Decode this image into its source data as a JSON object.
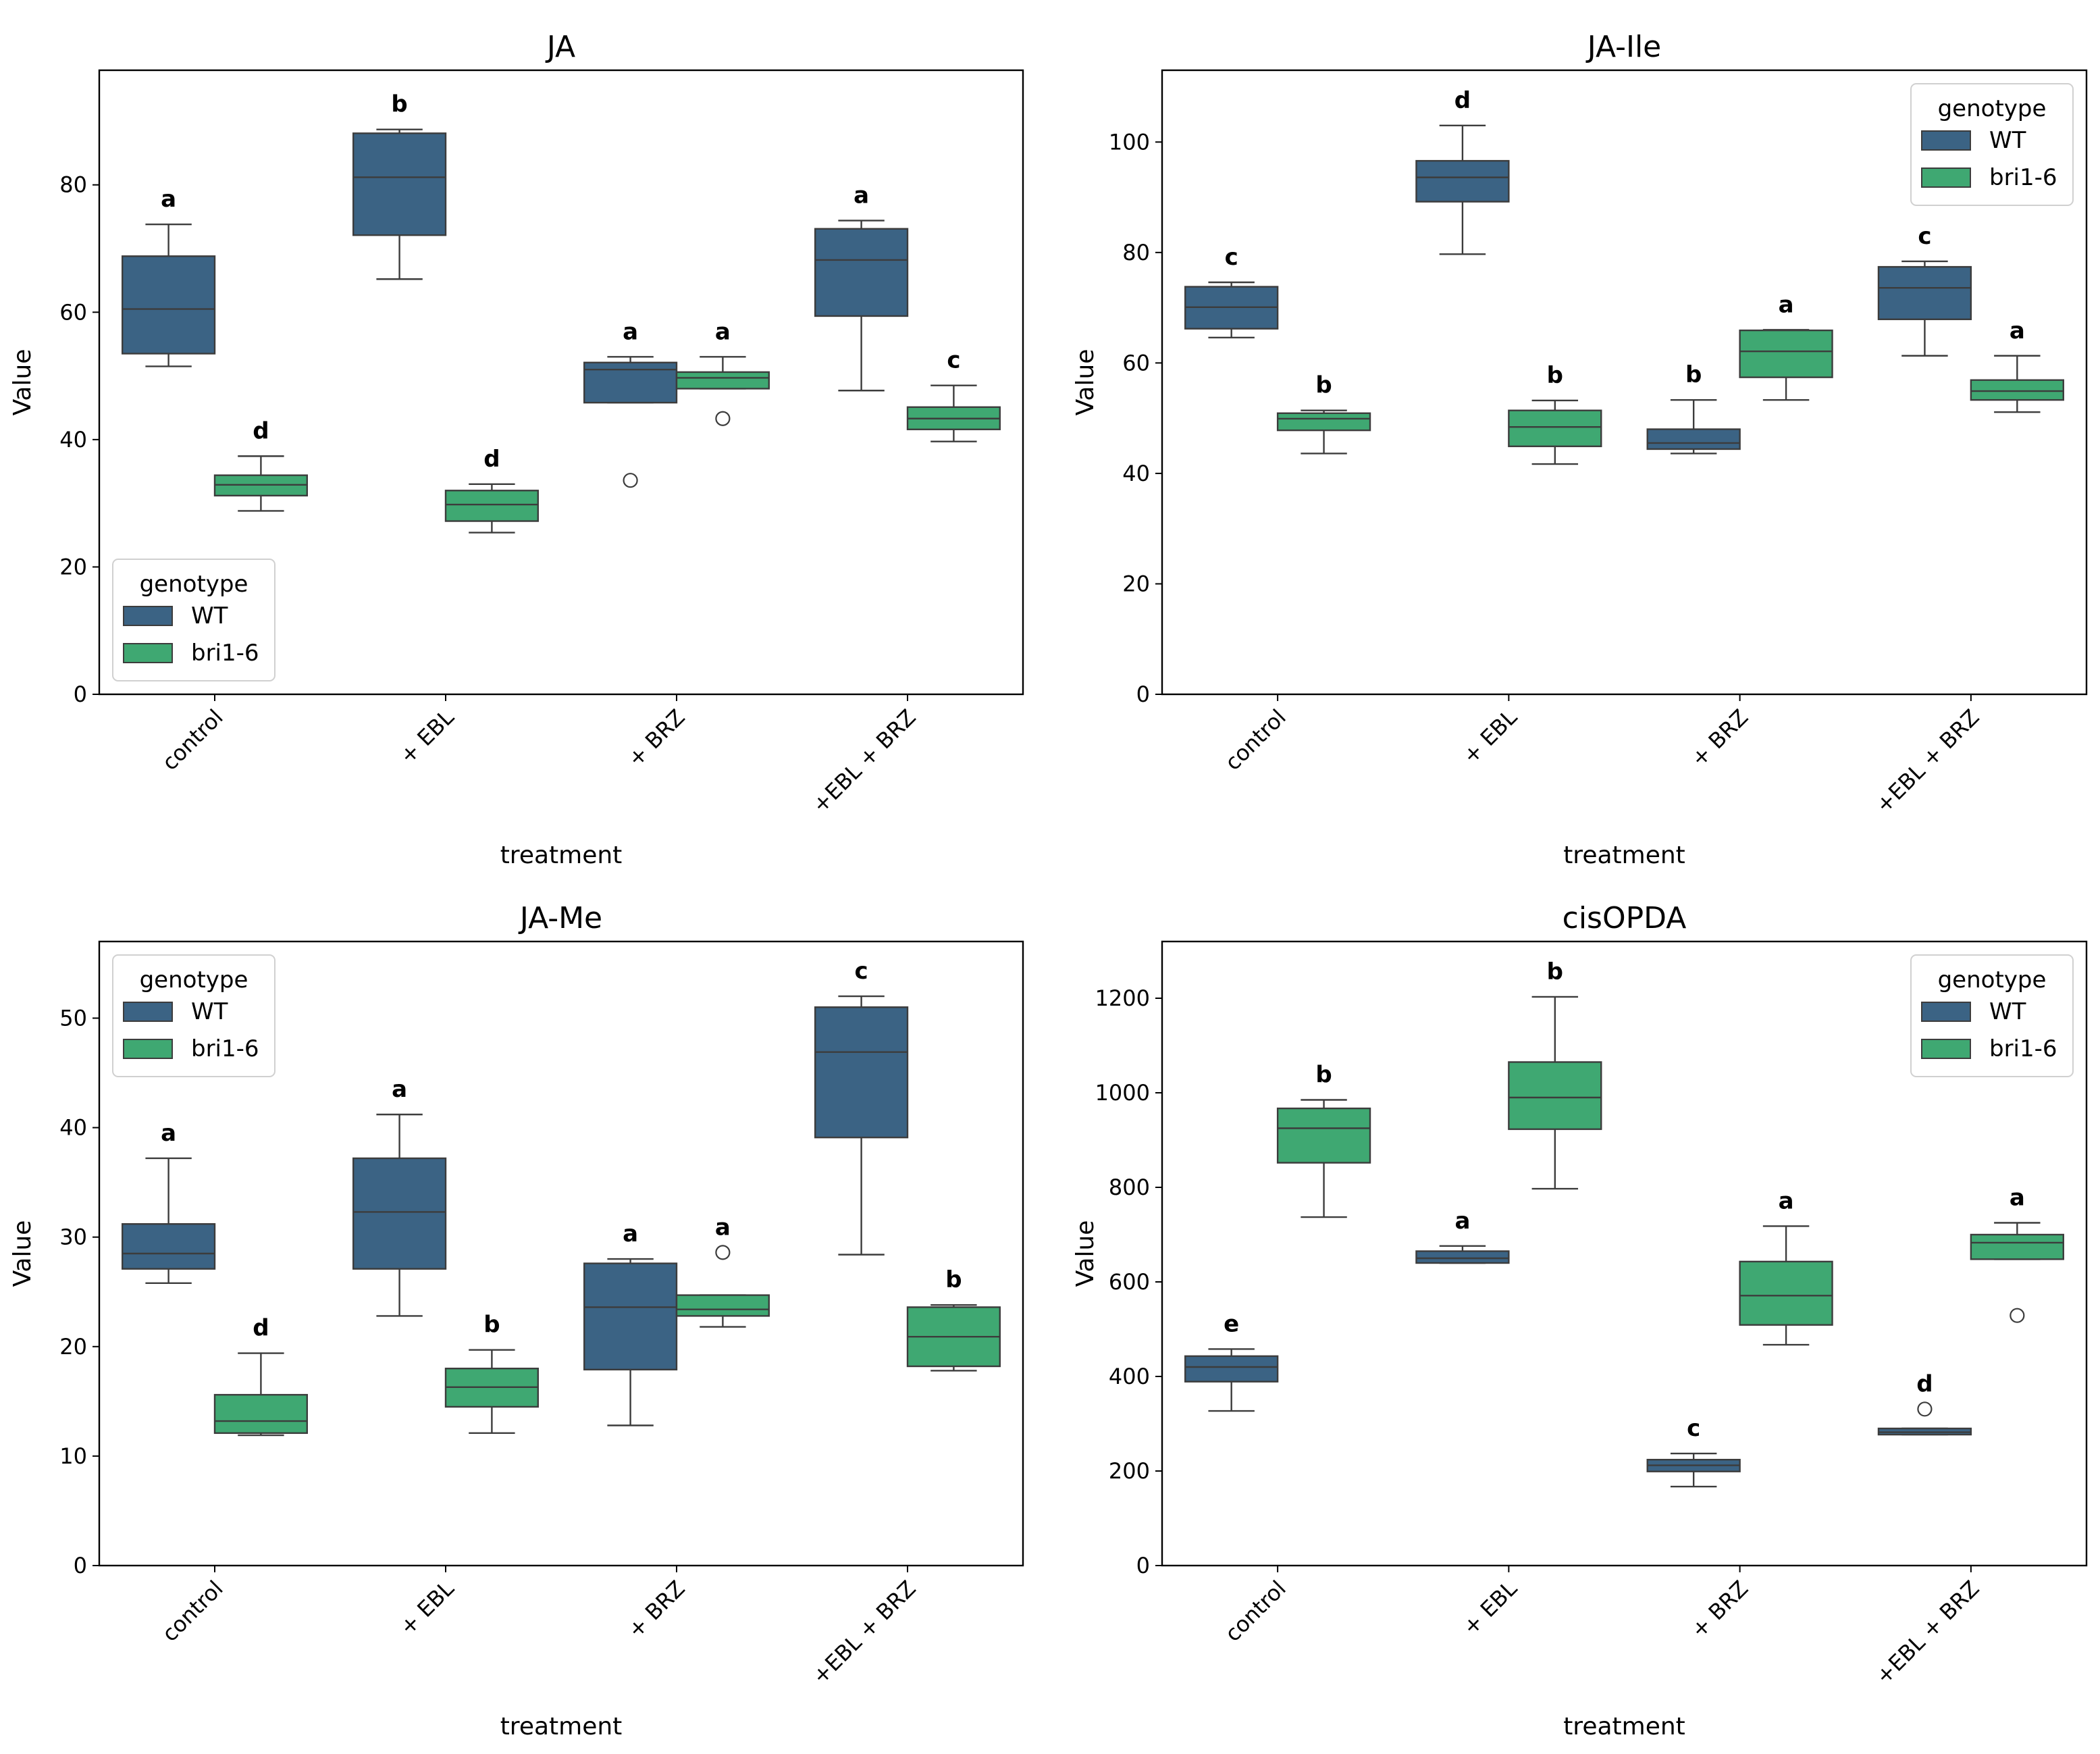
{
  "chart_data": [
    {
      "type": "box",
      "title": "JA",
      "xlabel": "treatment",
      "ylabel": "Value",
      "ylim": [
        0,
        98
      ],
      "yticks": [
        0,
        20,
        40,
        60,
        80
      ],
      "categories": [
        "control",
        "+ EBL",
        "+ BRZ",
        "+EBL + BRZ"
      ],
      "legend": {
        "title": "genotype",
        "position": "lower-left",
        "entries": [
          {
            "name": "WT",
            "color": "#3b6384"
          },
          {
            "name": "bri1-6",
            "color": "#3fa872"
          }
        ]
      },
      "series": [
        {
          "name": "WT",
          "color": "#3b6384",
          "boxes": [
            {
              "whislo": 51.5,
              "q1": 53.5,
              "med": 60.5,
              "q3": 68.8,
              "whishi": 73.8,
              "fliers": [],
              "letter": "a"
            },
            {
              "whislo": 65.2,
              "q1": 72.1,
              "med": 81.2,
              "q3": 88.1,
              "whishi": 88.7,
              "fliers": [],
              "letter": "b"
            },
            {
              "whislo": 45.8,
              "q1": 45.8,
              "med": 51.0,
              "q3": 52.1,
              "whishi": 53.0,
              "fliers": [
                33.6
              ],
              "letter": "a"
            },
            {
              "whislo": 47.7,
              "q1": 59.4,
              "med": 68.2,
              "q3": 73.1,
              "whishi": 74.4,
              "fliers": [],
              "letter": "a"
            }
          ]
        },
        {
          "name": "bri1-6",
          "color": "#3fa872",
          "boxes": [
            {
              "whislo": 28.8,
              "q1": 31.2,
              "med": 32.9,
              "q3": 34.4,
              "whishi": 37.4,
              "fliers": [],
              "letter": "d"
            },
            {
              "whislo": 25.4,
              "q1": 27.2,
              "med": 29.8,
              "q3": 32.0,
              "whishi": 33.0,
              "fliers": [],
              "letter": "d"
            },
            {
              "whislo": 48.0,
              "q1": 48.0,
              "med": 49.7,
              "q3": 50.6,
              "whishi": 53.0,
              "fliers": [
                43.3
              ],
              "letter": "a"
            },
            {
              "whislo": 39.7,
              "q1": 41.6,
              "med": 43.3,
              "q3": 45.1,
              "whishi": 48.5,
              "fliers": [],
              "letter": "c"
            }
          ]
        }
      ]
    },
    {
      "type": "box",
      "title": "JA-Ile",
      "xlabel": "treatment",
      "ylabel": "Value",
      "ylim": [
        0,
        113
      ],
      "yticks": [
        0,
        20,
        40,
        60,
        80,
        100
      ],
      "categories": [
        "control",
        "+ EBL",
        "+ BRZ",
        "+EBL + BRZ"
      ],
      "legend": {
        "title": "genotype",
        "position": "upper-right",
        "entries": [
          {
            "name": "WT",
            "color": "#3b6384"
          },
          {
            "name": "bri1-6",
            "color": "#3fa872"
          }
        ]
      },
      "series": [
        {
          "name": "WT",
          "color": "#3b6384",
          "boxes": [
            {
              "whislo": 64.6,
              "q1": 66.2,
              "med": 70.1,
              "q3": 73.8,
              "whishi": 74.6,
              "fliers": [],
              "letter": "c"
            },
            {
              "whislo": 79.7,
              "q1": 89.2,
              "med": 93.6,
              "q3": 96.6,
              "whishi": 103.0,
              "fliers": [],
              "letter": "d"
            },
            {
              "whislo": 43.6,
              "q1": 44.4,
              "med": 45.5,
              "q3": 48.0,
              "whishi": 53.3,
              "fliers": [],
              "letter": "b"
            },
            {
              "whislo": 61.3,
              "q1": 67.9,
              "med": 73.6,
              "q3": 77.4,
              "whishi": 78.4,
              "fliers": [],
              "letter": "c"
            }
          ]
        },
        {
          "name": "bri1-6",
          "color": "#3fa872",
          "boxes": [
            {
              "whislo": 43.6,
              "q1": 47.8,
              "med": 49.9,
              "q3": 50.9,
              "whishi": 51.4,
              "fliers": [],
              "letter": "b"
            },
            {
              "whislo": 41.7,
              "q1": 44.9,
              "med": 48.4,
              "q3": 51.4,
              "whishi": 53.2,
              "fliers": [],
              "letter": "b"
            },
            {
              "whislo": 53.3,
              "q1": 57.4,
              "med": 62.1,
              "q3": 65.9,
              "whishi": 66.0,
              "fliers": [],
              "letter": "a"
            },
            {
              "whislo": 51.1,
              "q1": 53.3,
              "med": 54.9,
              "q3": 56.9,
              "whishi": 61.3,
              "fliers": [],
              "letter": "a"
            }
          ]
        }
      ]
    },
    {
      "type": "box",
      "title": "JA-Me",
      "xlabel": "treatment",
      "ylabel": "Value",
      "ylim": [
        0,
        57
      ],
      "yticks": [
        0,
        10,
        20,
        30,
        40,
        50
      ],
      "categories": [
        "control",
        "+ EBL",
        "+ BRZ",
        "+EBL + BRZ"
      ],
      "legend": {
        "title": "genotype",
        "position": "upper-left",
        "entries": [
          {
            "name": "WT",
            "color": "#3b6384"
          },
          {
            "name": "bri1-6",
            "color": "#3fa872"
          }
        ]
      },
      "series": [
        {
          "name": "WT",
          "color": "#3b6384",
          "boxes": [
            {
              "whislo": 25.8,
              "q1": 27.1,
              "med": 28.5,
              "q3": 31.2,
              "whishi": 37.2,
              "fliers": [],
              "letter": "a"
            },
            {
              "whislo": 22.8,
              "q1": 27.1,
              "med": 32.3,
              "q3": 37.2,
              "whishi": 41.2,
              "fliers": [],
              "letter": "a"
            },
            {
              "whislo": 12.8,
              "q1": 17.9,
              "med": 23.6,
              "q3": 27.6,
              "whishi": 28.0,
              "fliers": [],
              "letter": "a"
            },
            {
              "whislo": 28.4,
              "q1": 39.1,
              "med": 46.9,
              "q3": 51.0,
              "whishi": 52.0,
              "fliers": [],
              "letter": "c"
            }
          ]
        },
        {
          "name": "bri1-6",
          "color": "#3fa872",
          "boxes": [
            {
              "whislo": 11.9,
              "q1": 12.1,
              "med": 13.2,
              "q3": 15.6,
              "whishi": 19.4,
              "fliers": [],
              "letter": "d"
            },
            {
              "whislo": 12.1,
              "q1": 14.5,
              "med": 16.3,
              "q3": 18.0,
              "whishi": 19.7,
              "fliers": [],
              "letter": "b"
            },
            {
              "whislo": 21.8,
              "q1": 22.8,
              "med": 23.4,
              "q3": 24.7,
              "whishi": 24.7,
              "fliers": [
                28.6
              ],
              "letter": "a"
            },
            {
              "whislo": 17.8,
              "q1": 18.2,
              "med": 20.9,
              "q3": 23.6,
              "whishi": 23.8,
              "fliers": [],
              "letter": "b"
            }
          ]
        }
      ]
    },
    {
      "type": "box",
      "title": "cisOPDA",
      "xlabel": "treatment",
      "ylabel": "Value",
      "ylim": [
        0,
        1320
      ],
      "yticks": [
        0,
        200,
        400,
        600,
        800,
        1000,
        1200
      ],
      "categories": [
        "control",
        "+ EBL",
        "+ BRZ",
        "+EBL + BRZ"
      ],
      "legend": {
        "title": "genotype",
        "position": "upper-right",
        "entries": [
          {
            "name": "WT",
            "color": "#3b6384"
          },
          {
            "name": "bri1-6",
            "color": "#3fa872"
          }
        ]
      },
      "series": [
        {
          "name": "WT",
          "color": "#3b6384",
          "boxes": [
            {
              "whislo": 327,
              "q1": 389,
              "med": 420,
              "q3": 443,
              "whishi": 458,
              "fliers": [],
              "letter": "e"
            },
            {
              "whislo": 640,
              "q1": 640,
              "med": 650,
              "q3": 665,
              "whishi": 676,
              "fliers": [],
              "letter": "a"
            },
            {
              "whislo": 167,
              "q1": 199,
              "med": 212,
              "q3": 224,
              "whishi": 237,
              "fliers": [],
              "letter": "c"
            },
            {
              "whislo": 277,
              "q1": 277,
              "med": 282,
              "q3": 290,
              "whishi": 290,
              "fliers": [
                331
              ],
              "letter": "d"
            }
          ]
        },
        {
          "name": "bri1-6",
          "color": "#3fa872",
          "boxes": [
            {
              "whislo": 737,
              "q1": 852,
              "med": 925,
              "q3": 967,
              "whishi": 985,
              "fliers": [],
              "letter": "b"
            },
            {
              "whislo": 797,
              "q1": 923,
              "med": 990,
              "q3": 1065,
              "whishi": 1203,
              "fliers": [],
              "letter": "b"
            },
            {
              "whislo": 467,
              "q1": 509,
              "med": 571,
              "q3": 643,
              "whishi": 718,
              "fliers": [],
              "letter": "a"
            },
            {
              "whislo": 648,
              "q1": 648,
              "med": 683,
              "q3": 700,
              "whishi": 725,
              "fliers": [
                529
              ],
              "letter": "a"
            }
          ]
        }
      ]
    }
  ]
}
